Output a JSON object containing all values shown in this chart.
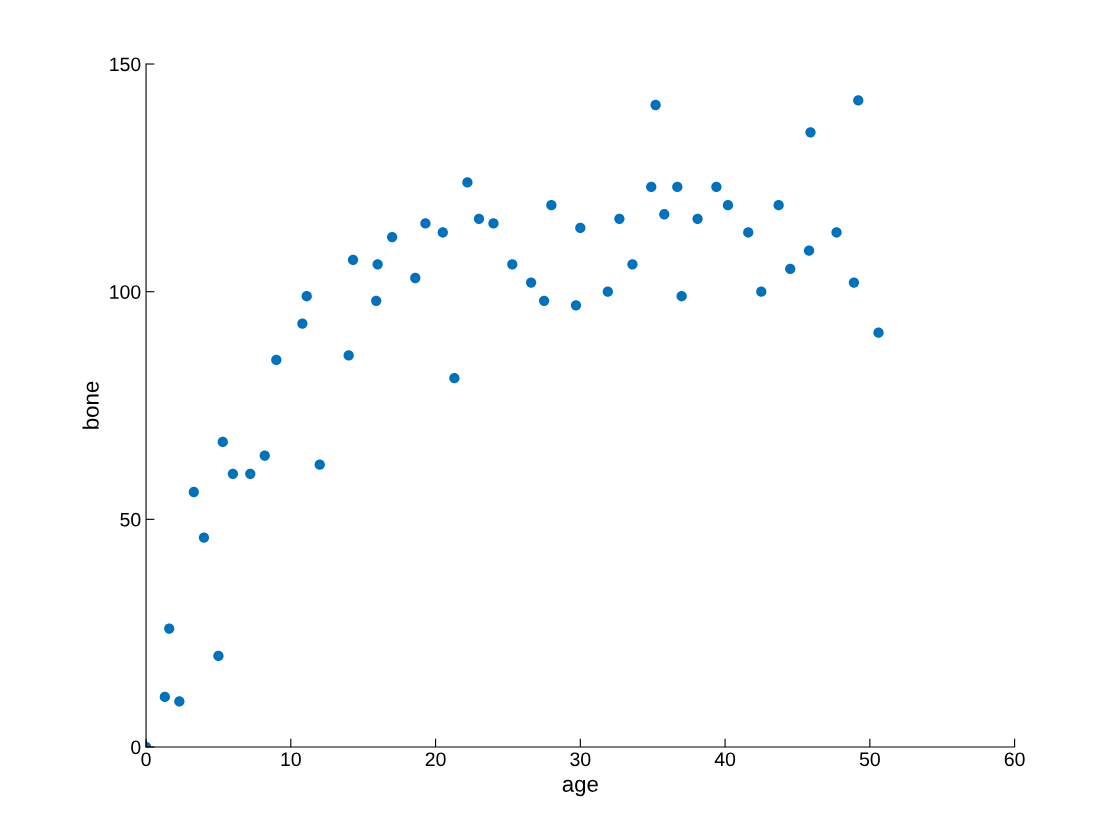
{
  "chart_data": {
    "type": "scatter",
    "xlabel": "age",
    "ylabel": "bone",
    "xlim": [
      0,
      60
    ],
    "ylim": [
      0,
      150
    ],
    "xticks": [
      0,
      10,
      20,
      30,
      40,
      50,
      60
    ],
    "yticks": [
      0,
      50,
      100,
      150
    ],
    "grid": false,
    "marker": "circle",
    "legend": false,
    "series": [
      {
        "color": "#0072bd",
        "x": [
          0,
          1.3,
          1.6,
          2.3,
          3.3,
          4.0,
          5.0,
          5.3,
          6.0,
          7.2,
          8.2,
          9.0,
          10.8,
          11.1,
          12.0,
          14.0,
          14.3,
          15.9,
          16.0,
          17.0,
          18.6,
          19.3,
          20.5,
          21.3,
          22.2,
          23.0,
          24.0,
          25.3,
          26.6,
          27.5,
          28.0,
          29.7,
          30.0,
          31.9,
          32.7,
          33.6,
          34.9,
          35.2,
          35.8,
          36.7,
          37.0,
          38.1,
          39.4,
          40.2,
          41.6,
          42.5,
          43.7,
          44.5,
          45.8,
          45.9,
          47.7,
          48.9,
          49.2,
          50.6
        ],
        "values": [
          0,
          11,
          26,
          10,
          56,
          46,
          20,
          67,
          60,
          60,
          64,
          85,
          93,
          99,
          62,
          86,
          107,
          98,
          106,
          112,
          103,
          115,
          113,
          81,
          124,
          116,
          115,
          106,
          102,
          98,
          119,
          97,
          114,
          100,
          116,
          106,
          123,
          141,
          117,
          123,
          99,
          116,
          123,
          119,
          113,
          100,
          119,
          105,
          109,
          135,
          113,
          102,
          142,
          91
        ]
      }
    ]
  }
}
